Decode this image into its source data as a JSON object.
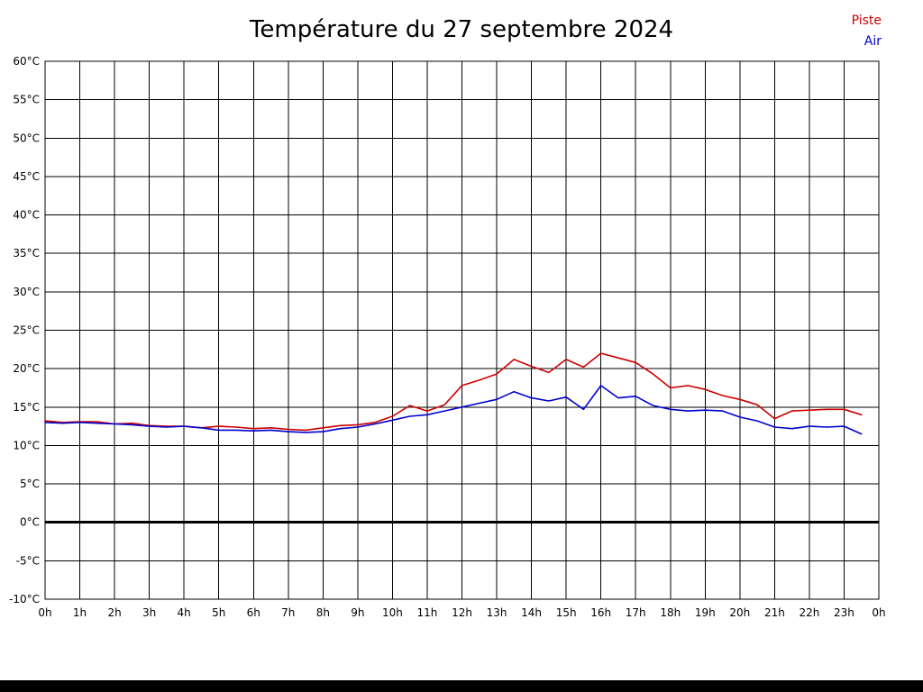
{
  "title": "Température du 27 septembre 2024",
  "legend": [
    {
      "label": "Piste",
      "color": "#cc0000"
    },
    {
      "label": "Air",
      "color": "#0000cc"
    }
  ],
  "chart_data": {
    "type": "line",
    "title": "Température du 27 septembre 2024",
    "ylabel": "°C",
    "xlabel": "",
    "ylim": [
      -10,
      60
    ],
    "ytick_step": 5,
    "y_unit": "°C",
    "grid": true,
    "legend_position": "top-right",
    "zero_line": {
      "value": 0,
      "color": "#000000",
      "width": 3
    },
    "x_tick_labels": [
      "0h",
      "1h",
      "2h",
      "3h",
      "4h",
      "5h",
      "6h",
      "7h",
      "8h",
      "9h",
      "10h",
      "11h",
      "12h",
      "13h",
      "14h",
      "15h",
      "16h",
      "17h",
      "18h",
      "19h",
      "20h",
      "21h",
      "22h",
      "23h",
      "0h"
    ],
    "series": [
      {
        "name": "Piste",
        "color": "#cc0000",
        "x": [
          0,
          0.5,
          1,
          1.5,
          2,
          2.5,
          3,
          3.5,
          4,
          4.5,
          5,
          5.5,
          6,
          6.5,
          7,
          7.5,
          8,
          8.5,
          9,
          9.5,
          10,
          10.5,
          11,
          11.5,
          12,
          12.5,
          13,
          13.5,
          14,
          14.5,
          15,
          15.5,
          16,
          16.5,
          17,
          17.5,
          18,
          18.5,
          19,
          19.5,
          20,
          20.5,
          21,
          21.5,
          22,
          22.5,
          23,
          23.5
        ],
        "values": [
          13.2,
          13.0,
          13.1,
          13.1,
          12.8,
          12.9,
          12.6,
          12.5,
          12.5,
          12.3,
          12.5,
          12.4,
          12.2,
          12.3,
          12.1,
          12.0,
          12.3,
          12.6,
          12.7,
          13.0,
          13.8,
          15.2,
          14.5,
          15.3,
          17.8,
          18.5,
          19.3,
          21.2,
          20.3,
          19.5,
          21.2,
          20.2,
          22.0,
          21.4,
          20.8,
          19.3,
          17.5,
          17.8,
          17.3,
          16.5,
          16.0,
          15.3,
          13.5,
          14.5,
          14.6,
          14.7,
          14.7,
          14.0
        ]
      },
      {
        "name": "Air",
        "color": "#0000cc",
        "x": [
          0,
          0.5,
          1,
          1.5,
          2,
          2.5,
          3,
          3.5,
          4,
          4.5,
          5,
          5.5,
          6,
          6.5,
          7,
          7.5,
          8,
          8.5,
          9,
          9.5,
          10,
          10.5,
          11,
          11.5,
          12,
          12.5,
          13,
          13.5,
          14,
          14.5,
          15,
          15.5,
          16,
          16.5,
          17,
          17.5,
          18,
          18.5,
          19,
          19.5,
          20,
          20.5,
          21,
          21.5,
          22,
          22.5,
          23,
          23.5
        ],
        "values": [
          13.0,
          12.9,
          13.0,
          12.9,
          12.8,
          12.7,
          12.5,
          12.4,
          12.5,
          12.3,
          12.0,
          12.0,
          11.9,
          12.0,
          11.8,
          11.7,
          11.8,
          12.2,
          12.4,
          12.8,
          13.3,
          13.8,
          14.0,
          14.5,
          15.0,
          15.5,
          16.0,
          17.0,
          16.2,
          15.8,
          16.3,
          14.7,
          17.8,
          16.2,
          16.4,
          15.2,
          14.7,
          14.5,
          14.6,
          14.5,
          13.7,
          13.2,
          12.4,
          12.2,
          12.5,
          12.4,
          12.5,
          11.5
        ]
      }
    ]
  }
}
